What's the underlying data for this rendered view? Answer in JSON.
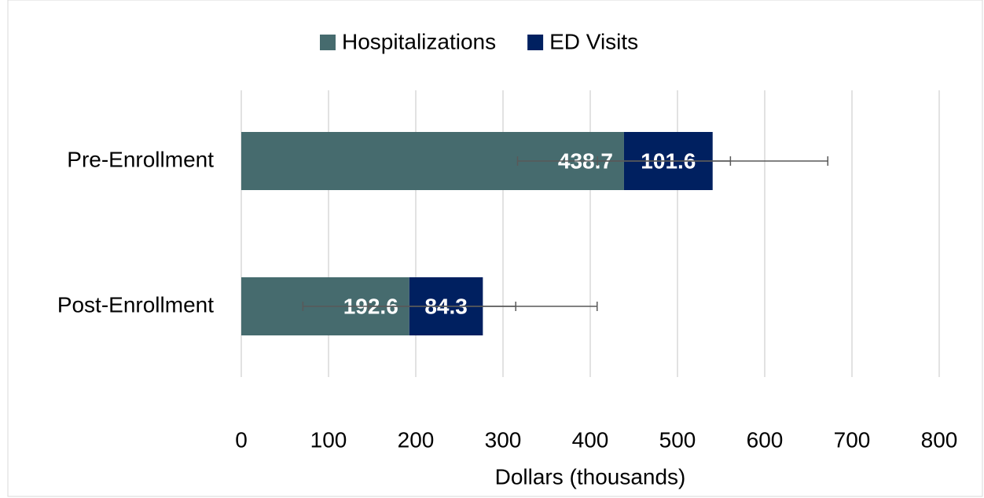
{
  "chart_data": {
    "type": "stacked_barh",
    "categories": [
      "Pre-Enrollment",
      "Post-Enrollment"
    ],
    "series": [
      {
        "name": "Hospitalizations",
        "color": "#466b6e",
        "values": [
          438.7,
          192.6
        ],
        "errors": [
          122,
          122
        ]
      },
      {
        "name": "ED Visits",
        "color": "#002060",
        "values": [
          101.6,
          84.3
        ],
        "errors": [
          132,
          131
        ]
      }
    ],
    "xlabel": "Dollars (thousands)",
    "xlim": [
      0,
      800
    ],
    "xticks": [
      0,
      100,
      200,
      300,
      400,
      500,
      600,
      700,
      800
    ],
    "grid": true,
    "legend": "top"
  }
}
